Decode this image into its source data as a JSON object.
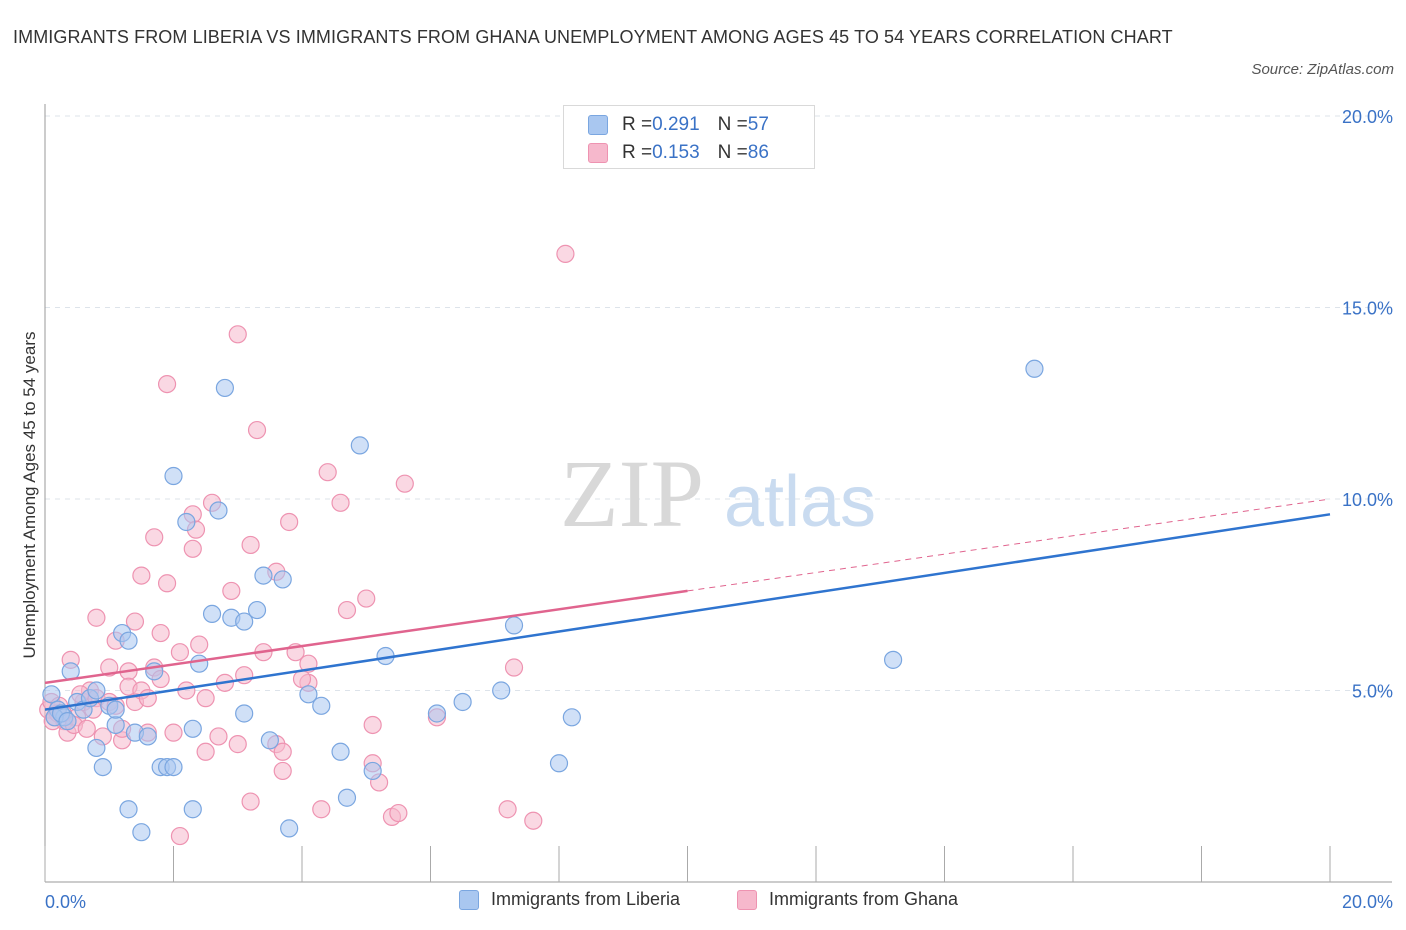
{
  "title": "IMMIGRANTS FROM LIBERIA VS IMMIGRANTS FROM GHANA UNEMPLOYMENT AMONG AGES 45 TO 54 YEARS CORRELATION CHART",
  "source": "Source: ZipAtlas.com",
  "watermark": {
    "zip": "ZIP",
    "atlas": "atlas"
  },
  "legend": {
    "liberia": {
      "r_label": "R = ",
      "r_value": "0.291",
      "n_label": "N = ",
      "n_value": "57"
    },
    "ghana": {
      "r_label": "R = ",
      "r_value": "0.153",
      "n_label": "N = ",
      "n_value": "86"
    }
  },
  "colors": {
    "liberia_fill": "#a9c7f0",
    "liberia_stroke": "#7aa6e0",
    "liberia_line": "#2f74cf",
    "ghana_fill": "#f6b8cc",
    "ghana_stroke": "#ee93b1",
    "ghana_line": "#e0648e",
    "tick_text": "#3a72c6",
    "grid": "#dde3ea"
  },
  "chart_data": {
    "type": "scatter",
    "ylabel": "Unemployment Among Ages 45 to 54 years",
    "xlim": [
      0,
      20
    ],
    "ylim": [
      0,
      20
    ],
    "x_tick_labels": [
      "0.0%",
      "20.0%"
    ],
    "y_ticks": [
      5,
      10,
      15,
      20
    ],
    "y_tick_labels": [
      "5.0%",
      "10.0%",
      "15.0%",
      "20.0%"
    ],
    "grid": "horizontal dashed",
    "legend_placement": "top-center",
    "series": [
      {
        "name": "Immigrants from Liberia",
        "r": 0.291,
        "n": 57,
        "trend": {
          "x": [
            0,
            20
          ],
          "y": [
            4.5,
            9.6
          ],
          "style": "solid"
        },
        "points": [
          [
            0.1,
            4.9
          ],
          [
            0.2,
            4.5
          ],
          [
            0.3,
            4.3
          ],
          [
            0.4,
            5.5
          ],
          [
            0.5,
            4.7
          ],
          [
            0.6,
            4.5
          ],
          [
            0.7,
            4.8
          ],
          [
            0.8,
            5.0
          ],
          [
            0.8,
            3.5
          ],
          [
            0.9,
            3.0
          ],
          [
            1.0,
            4.6
          ],
          [
            1.1,
            4.1
          ],
          [
            1.1,
            4.5
          ],
          [
            1.2,
            6.5
          ],
          [
            1.3,
            1.9
          ],
          [
            1.3,
            6.3
          ],
          [
            1.4,
            3.9
          ],
          [
            1.5,
            1.3
          ],
          [
            1.6,
            3.8
          ],
          [
            1.7,
            5.5
          ],
          [
            1.8,
            3.0
          ],
          [
            1.9,
            3.0
          ],
          [
            2.0,
            3.0
          ],
          [
            2.0,
            10.6
          ],
          [
            2.2,
            9.4
          ],
          [
            2.3,
            1.9
          ],
          [
            2.3,
            4.0
          ],
          [
            2.4,
            5.7
          ],
          [
            2.6,
            7.0
          ],
          [
            2.7,
            9.7
          ],
          [
            2.8,
            12.9
          ],
          [
            2.9,
            6.9
          ],
          [
            3.1,
            6.8
          ],
          [
            3.1,
            4.4
          ],
          [
            3.3,
            7.1
          ],
          [
            3.4,
            8.0
          ],
          [
            3.5,
            3.7
          ],
          [
            3.7,
            7.9
          ],
          [
            3.8,
            1.4
          ],
          [
            4.1,
            4.9
          ],
          [
            4.3,
            4.6
          ],
          [
            4.6,
            3.4
          ],
          [
            4.7,
            2.2
          ],
          [
            4.9,
            11.4
          ],
          [
            5.1,
            2.9
          ],
          [
            5.3,
            5.9
          ],
          [
            6.1,
            4.4
          ],
          [
            6.5,
            4.7
          ],
          [
            7.1,
            5.0
          ],
          [
            7.3,
            6.7
          ],
          [
            8.0,
            3.1
          ],
          [
            8.2,
            4.3
          ],
          [
            13.2,
            5.8
          ],
          [
            15.4,
            13.4
          ],
          [
            0.15,
            4.3
          ],
          [
            0.25,
            4.4
          ],
          [
            0.35,
            4.2
          ]
        ]
      },
      {
        "name": "Immigrants from Ghana",
        "r": 0.153,
        "n": 86,
        "trend": {
          "x": [
            0,
            20
          ],
          "y": [
            5.2,
            10.0
          ],
          "solid_until": 10
        },
        "points": [
          [
            0.05,
            4.5
          ],
          [
            0.1,
            4.7
          ],
          [
            0.15,
            4.3
          ],
          [
            0.2,
            4.4
          ],
          [
            0.3,
            4.2
          ],
          [
            0.35,
            3.9
          ],
          [
            0.4,
            5.8
          ],
          [
            0.5,
            4.3
          ],
          [
            0.6,
            4.7
          ],
          [
            0.7,
            5.0
          ],
          [
            0.8,
            6.9
          ],
          [
            0.8,
            4.8
          ],
          [
            0.9,
            3.8
          ],
          [
            1.0,
            5.6
          ],
          [
            1.0,
            4.7
          ],
          [
            1.1,
            6.3
          ],
          [
            1.1,
            4.6
          ],
          [
            1.2,
            3.7
          ],
          [
            1.2,
            4.0
          ],
          [
            1.3,
            5.5
          ],
          [
            1.3,
            5.1
          ],
          [
            1.4,
            4.7
          ],
          [
            1.4,
            6.8
          ],
          [
            1.5,
            5.0
          ],
          [
            1.5,
            8.0
          ],
          [
            1.6,
            4.8
          ],
          [
            1.6,
            3.9
          ],
          [
            1.7,
            9.0
          ],
          [
            1.7,
            5.6
          ],
          [
            1.8,
            6.5
          ],
          [
            1.8,
            5.3
          ],
          [
            1.9,
            7.8
          ],
          [
            1.9,
            13.0
          ],
          [
            2.0,
            3.9
          ],
          [
            2.1,
            6.0
          ],
          [
            2.1,
            1.2
          ],
          [
            2.2,
            5.0
          ],
          [
            2.3,
            8.7
          ],
          [
            2.3,
            9.6
          ],
          [
            2.4,
            6.2
          ],
          [
            2.5,
            4.8
          ],
          [
            2.5,
            3.4
          ],
          [
            2.6,
            9.9
          ],
          [
            2.7,
            3.8
          ],
          [
            2.8,
            5.2
          ],
          [
            2.9,
            7.6
          ],
          [
            3.0,
            3.6
          ],
          [
            3.0,
            14.3
          ],
          [
            3.1,
            5.4
          ],
          [
            3.2,
            8.8
          ],
          [
            3.2,
            2.1
          ],
          [
            3.3,
            11.8
          ],
          [
            3.4,
            6.0
          ],
          [
            3.6,
            3.6
          ],
          [
            3.6,
            8.1
          ],
          [
            3.7,
            3.4
          ],
          [
            3.7,
            2.9
          ],
          [
            3.8,
            9.4
          ],
          [
            3.9,
            6.0
          ],
          [
            4.1,
            5.2
          ],
          [
            4.1,
            5.7
          ],
          [
            4.3,
            1.9
          ],
          [
            4.4,
            10.7
          ],
          [
            4.6,
            9.9
          ],
          [
            4.7,
            7.1
          ],
          [
            5.0,
            7.4
          ],
          [
            5.1,
            4.1
          ],
          [
            5.1,
            3.1
          ],
          [
            5.2,
            2.6
          ],
          [
            5.4,
            1.7
          ],
          [
            5.5,
            1.8
          ],
          [
            5.6,
            10.4
          ],
          [
            7.2,
            1.9
          ],
          [
            7.3,
            5.6
          ],
          [
            7.6,
            1.6
          ],
          [
            8.1,
            16.4
          ],
          [
            0.12,
            4.2
          ],
          [
            0.22,
            4.6
          ],
          [
            0.28,
            4.4
          ],
          [
            0.45,
            4.1
          ],
          [
            0.55,
            4.9
          ],
          [
            0.65,
            4.0
          ],
          [
            0.75,
            4.5
          ],
          [
            2.35,
            9.2
          ],
          [
            6.1,
            4.3
          ],
          [
            4.0,
            5.3
          ]
        ]
      }
    ]
  },
  "bottom_legend": {
    "liberia": "Immigrants from Liberia",
    "ghana": "Immigrants from Ghana"
  }
}
